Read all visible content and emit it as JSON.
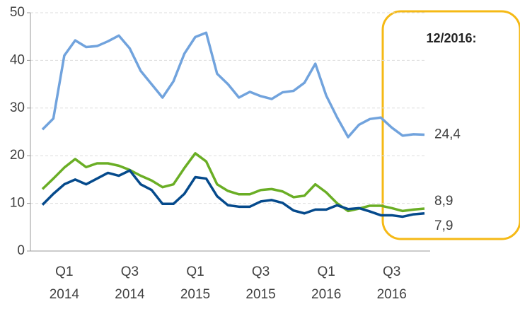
{
  "chart_data": {
    "type": "line",
    "annotation": "12/2016:",
    "categories": [
      null,
      null,
      "Q1 2014",
      null,
      null,
      null,
      null,
      null,
      "Q3 2014",
      null,
      null,
      null,
      null,
      null,
      "Q1 2015",
      null,
      null,
      null,
      null,
      null,
      "Q3 2015",
      null,
      null,
      null,
      null,
      null,
      "Q1 2016",
      null,
      null,
      null,
      null,
      null,
      "Q3 2016",
      null,
      null,
      null
    ],
    "series": [
      {
        "color": "#71a3dd",
        "end_label": "24,4",
        "values": [
          25.5,
          27.8,
          41,
          44.2,
          42.8,
          43,
          44,
          45.2,
          42.5,
          37.8,
          35,
          32.2,
          35.6,
          41.4,
          44.9,
          45.8,
          37.2,
          35,
          32.2,
          33.4,
          32.5,
          31.9,
          33.3,
          33.6,
          35.3,
          39.3,
          32.6,
          28,
          23.9,
          26.5,
          27.7,
          28,
          25.9,
          24.2,
          24.5,
          24.4
        ]
      },
      {
        "color": "#6aae25",
        "end_label": "8,9",
        "values": [
          13,
          15.2,
          17.5,
          19.3,
          17.6,
          18.4,
          18.4,
          17.9,
          17,
          15.8,
          14.8,
          13.4,
          14,
          17.4,
          20.5,
          18.8,
          14,
          12.6,
          11.9,
          11.9,
          12.8,
          13,
          12.5,
          11.3,
          11.6,
          14,
          12.3,
          10,
          8.4,
          8.9,
          9.5,
          9.5,
          9,
          8.4,
          8.7,
          8.9
        ]
      },
      {
        "color": "#054a8c",
        "end_label": "7,9",
        "values": [
          9.7,
          12,
          14,
          15,
          14,
          15.2,
          16.4,
          15.8,
          16.9,
          14,
          12.8,
          9.9,
          9.9,
          12,
          15.5,
          15.2,
          11.5,
          9.6,
          9.3,
          9.3,
          10.4,
          10.7,
          10.1,
          8.5,
          7.9,
          8.7,
          8.7,
          9.6,
          8.8,
          9,
          8.3,
          7.5,
          7.5,
          7.2,
          7.7,
          7.9
        ]
      }
    ],
    "ylim": [
      0,
      50
    ],
    "yticks": [
      0,
      10,
      20,
      30,
      40,
      50
    ],
    "grid": true
  }
}
